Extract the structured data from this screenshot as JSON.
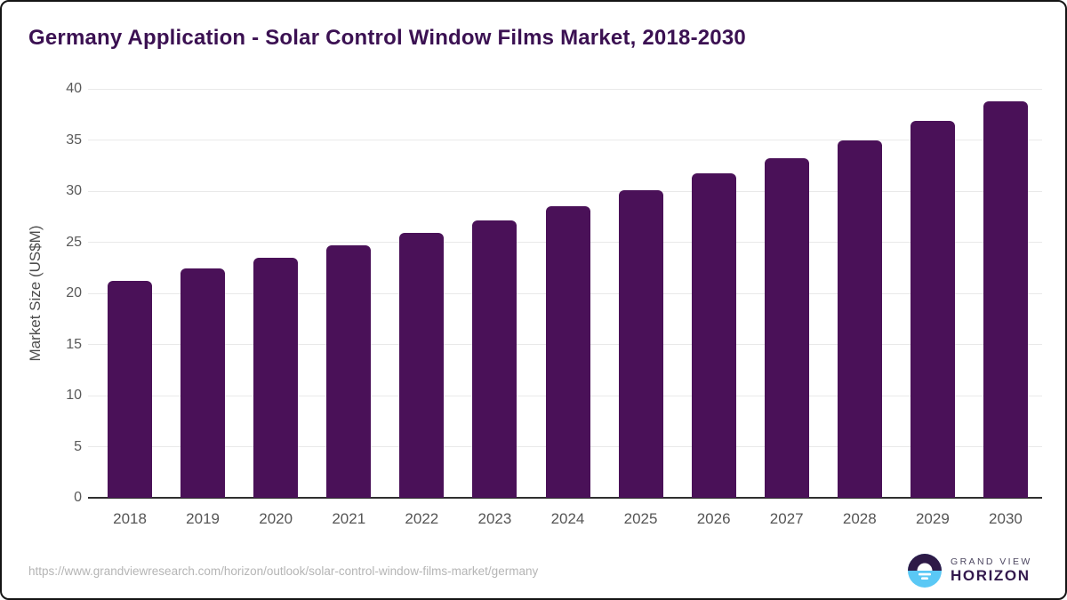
{
  "header": {
    "title": "Germany Application - Solar Control Window Films Market, 2018-2030"
  },
  "chart_data": {
    "type": "bar",
    "title": "Germany Application - Solar Control Window Films Market, 2018-2030",
    "categories": [
      "2018",
      "2019",
      "2020",
      "2021",
      "2022",
      "2023",
      "2024",
      "2025",
      "2026",
      "2027",
      "2028",
      "2029",
      "2030"
    ],
    "values": [
      21.2,
      22.4,
      23.5,
      24.7,
      25.9,
      27.1,
      28.5,
      30.1,
      31.7,
      33.2,
      35.0,
      36.9,
      38.8
    ],
    "xlabel": "",
    "ylabel": "Market Size (US$M)",
    "ylim": [
      0,
      40
    ],
    "y_ticks": [
      0,
      5,
      10,
      15,
      20,
      25,
      30,
      35,
      40
    ],
    "grid": "horizontal",
    "legend": "none",
    "bar_color": "#4a1158"
  },
  "colors": {
    "bar": "#4a1158",
    "title_text": "#3b1152",
    "axis_text": "#595959",
    "gridline": "#e9e9e9",
    "axis_line": "#2f2f2f",
    "url_text": "#b5b5b5",
    "logo_purple": "#2e1a47",
    "logo_blue": "#5ac8f5"
  },
  "footer": {
    "source_url": "https://www.grandviewresearch.com/horizon/outlook/solar-control-window-films-market/germany",
    "logo": {
      "brand_top": "GRAND VIEW",
      "brand_bottom": "HORIZON"
    }
  }
}
